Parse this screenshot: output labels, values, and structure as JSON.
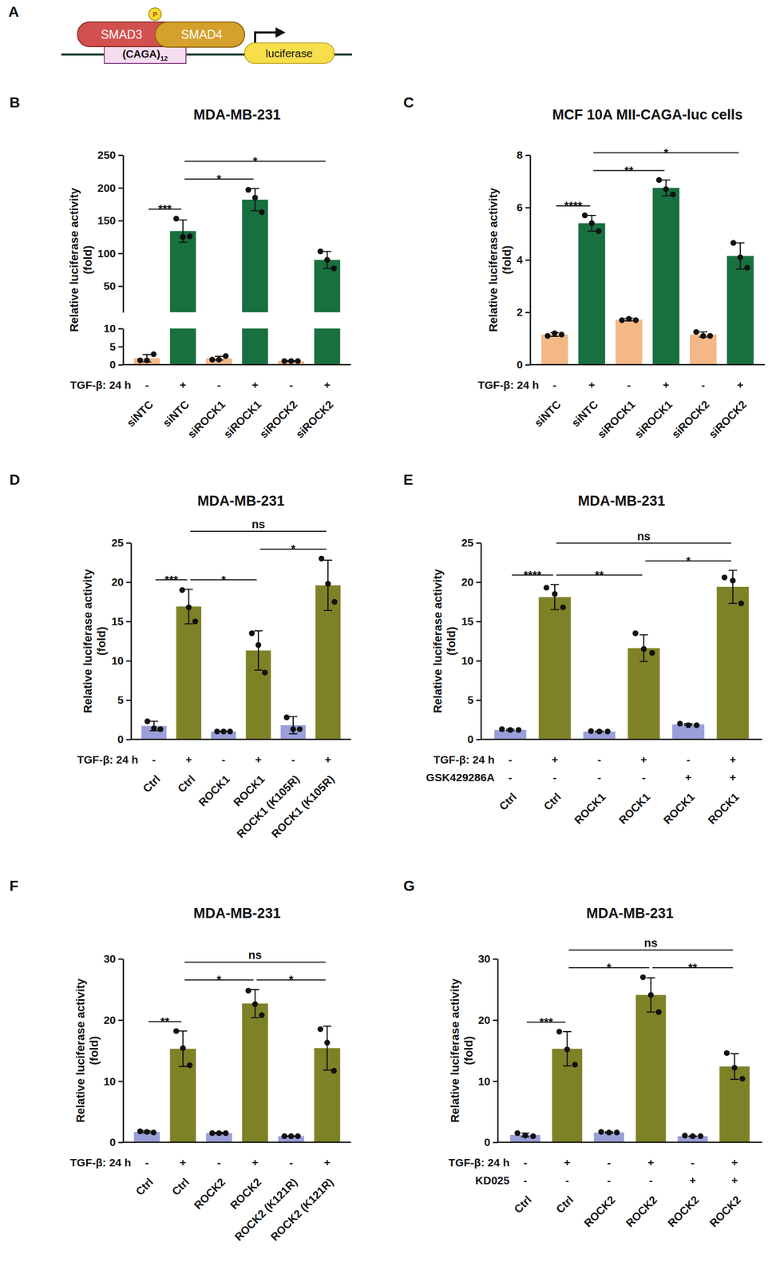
{
  "diagram": {
    "panel": "A",
    "nodes": [
      {
        "label": "SMAD3"
      },
      {
        "label": "SMAD4"
      },
      {
        "label": "P"
      },
      {
        "label": "(CAGA)",
        "subscript": "12"
      },
      {
        "label": "luciferase"
      }
    ]
  },
  "chart_data": [
    {
      "panel": "B",
      "type": "bar",
      "title": "MDA-MB-231",
      "ylabel": "Relative luciferase activity (fold)",
      "categories": [
        "siNTC",
        "siNTC",
        "siROCK1",
        "siROCK1",
        "siROCK2",
        "siROCK2"
      ],
      "x_rows": [
        {
          "label": "TGF-β: 24 h",
          "values": [
            "-",
            "+",
            "-",
            "+",
            "-",
            "+"
          ]
        }
      ],
      "ylim": [
        0,
        250
      ],
      "yticks": [
        0,
        5,
        10,
        50,
        100,
        150,
        200,
        250
      ],
      "ybreak": 10,
      "series": [
        {
          "values": [
            1.8,
            134,
            1.8,
            182,
            1.0,
            90
          ],
          "errors": [
            1.0,
            17,
            0.5,
            17,
            0.1,
            13
          ],
          "points": [
            [
              1.2,
              1.2,
              2.9
            ],
            [
              153,
              125,
              126
            ],
            [
              1.4,
              1.4,
              2.4
            ],
            [
              197,
              185,
              163
            ],
            [
              1.0,
              1.0,
              1.0
            ],
            [
              103,
              90,
              77
            ]
          ],
          "colors": [
            "#f4b887",
            "#18703f",
            "#f4b887",
            "#18703f",
            "#f4b887",
            "#18703f"
          ]
        }
      ],
      "annotations": [
        {
          "text": "***",
          "from": 0,
          "to": 1
        },
        {
          "text": "*",
          "from": 1,
          "to": 3
        },
        {
          "text": "*",
          "from": 1,
          "to": 5
        }
      ]
    },
    {
      "panel": "C",
      "type": "bar",
      "title": "MCF 10A MII-CAGA-luc cells",
      "ylabel": "Relative luciferase activity (fold)",
      "categories": [
        "siNTC",
        "siNTC",
        "siROCK1",
        "siROCK1",
        "siROCK2",
        "siROCK2"
      ],
      "x_rows": [
        {
          "label": "TGF-β: 24 h",
          "values": [
            "-",
            "+",
            "-",
            "+",
            "-",
            "+"
          ]
        }
      ],
      "ylim": [
        0,
        8
      ],
      "yticks": [
        0,
        2,
        4,
        6,
        8
      ],
      "series": [
        {
          "values": [
            1.15,
            5.4,
            1.72,
            6.75,
            1.15,
            4.15
          ],
          "errors": [
            0.07,
            0.3,
            0.05,
            0.3,
            0.1,
            0.5
          ],
          "points": [
            [
              1.1,
              1.2,
              1.15
            ],
            [
              5.7,
              5.4,
              5.1
            ],
            [
              1.7,
              1.75,
              1.7
            ],
            [
              7.05,
              6.7,
              6.5
            ],
            [
              1.25,
              1.1,
              1.1
            ],
            [
              4.65,
              4.1,
              3.7
            ]
          ],
          "colors": [
            "#f4b887",
            "#18703f",
            "#f4b887",
            "#18703f",
            "#f4b887",
            "#18703f"
          ]
        }
      ],
      "annotations": [
        {
          "text": "****",
          "from": 0,
          "to": 1
        },
        {
          "text": "**",
          "from": 1,
          "to": 3
        },
        {
          "text": "*",
          "from": 1,
          "to": 5
        }
      ]
    },
    {
      "panel": "D",
      "type": "bar",
      "title": "MDA-MB-231",
      "ylabel": "Relative luciferase activity (fold)",
      "categories": [
        "Ctrl",
        "Ctrl",
        "ROCK1",
        "ROCK1",
        "ROCK1 (K105R)",
        "ROCK1 (K105R)"
      ],
      "x_rows": [
        {
          "label": "TGF-β: 24 h",
          "values": [
            "-",
            "+",
            "-",
            "+",
            "-",
            "+"
          ]
        }
      ],
      "ylim": [
        0,
        25
      ],
      "yticks": [
        0,
        5,
        10,
        15,
        20,
        25
      ],
      "series": [
        {
          "values": [
            1.7,
            16.9,
            1.0,
            11.3,
            1.8,
            19.6
          ],
          "errors": [
            0.6,
            2.2,
            0.02,
            2.5,
            1.1,
            3.2
          ],
          "points": [
            [
              2.3,
              1.4,
              1.3
            ],
            [
              19.0,
              16.8,
              15.0
            ],
            [
              1.0,
              1.0,
              1.0
            ],
            [
              13.5,
              12.0,
              8.5
            ],
            [
              2.8,
              1.3,
              1.3
            ],
            [
              23.0,
              19.8,
              17.5
            ]
          ],
          "colors": [
            "#9a9ed9",
            "#7e8226",
            "#9a9ed9",
            "#7e8226",
            "#9a9ed9",
            "#7e8226"
          ]
        }
      ],
      "annotations": [
        {
          "text": "***",
          "from": 0,
          "to": 1
        },
        {
          "text": "*",
          "from": 1,
          "to": 3
        },
        {
          "text": "*",
          "from": 3,
          "to": 5
        },
        {
          "text": "ns",
          "from": 1,
          "to": 5
        }
      ]
    },
    {
      "panel": "E",
      "type": "bar",
      "title": "MDA-MB-231",
      "ylabel": "Relative luciferase activity (fold)",
      "categories": [
        "Ctrl",
        "Ctrl",
        "ROCK1",
        "ROCK1",
        "ROCK1",
        "ROCK1"
      ],
      "x_rows": [
        {
          "label": "TGF-β: 24 h",
          "values": [
            "-",
            "+",
            "-",
            "+",
            "-",
            "+"
          ]
        },
        {
          "label": "GSK429286A",
          "values": [
            "-",
            "-",
            "-",
            "-",
            "+",
            "+"
          ]
        }
      ],
      "ylim": [
        0,
        25
      ],
      "yticks": [
        0,
        5,
        10,
        15,
        20,
        25
      ],
      "series": [
        {
          "values": [
            1.2,
            18.1,
            1.0,
            11.6,
            1.9,
            19.4
          ],
          "errors": [
            0.1,
            1.6,
            0.05,
            1.7,
            0.1,
            2.1
          ],
          "points": [
            [
              1.3,
              1.2,
              1.2
            ],
            [
              19.3,
              18.5,
              16.8
            ],
            [
              1.05,
              1.0,
              1.0
            ],
            [
              13.5,
              11.5,
              11.0
            ],
            [
              2.0,
              1.8,
              1.8
            ],
            [
              20.6,
              20.2,
              17.3
            ]
          ],
          "colors": [
            "#9a9ed9",
            "#7e8226",
            "#9a9ed9",
            "#7e8226",
            "#9a9ed9",
            "#7e8226"
          ]
        }
      ],
      "annotations": [
        {
          "text": "****",
          "from": 0,
          "to": 1
        },
        {
          "text": "**",
          "from": 1,
          "to": 3
        },
        {
          "text": "*",
          "from": 3,
          "to": 5
        },
        {
          "text": "ns",
          "from": 1,
          "to": 5
        }
      ]
    },
    {
      "panel": "F",
      "type": "bar",
      "title": "MDA-MB-231",
      "ylabel": "Relative luciferase activity (fold)",
      "categories": [
        "Ctrl",
        "Ctrl",
        "ROCK2",
        "ROCK2",
        "ROCK2 (K121R)",
        "ROCK2 (K121R)"
      ],
      "x_rows": [
        {
          "label": "TGF-β: 24 h",
          "values": [
            "-",
            "+",
            "-",
            "+",
            "-",
            "+"
          ]
        }
      ],
      "ylim": [
        0,
        30
      ],
      "yticks": [
        0,
        10,
        20,
        30
      ],
      "series": [
        {
          "values": [
            1.7,
            15.3,
            1.5,
            22.7,
            1.0,
            15.4
          ],
          "errors": [
            0.15,
            2.9,
            0.1,
            2.3,
            0.05,
            3.6
          ],
          "points": [
            [
              1.8,
              1.7,
              1.6
            ],
            [
              18.2,
              15.4,
              12.6
            ],
            [
              1.5,
              1.5,
              1.5
            ],
            [
              24.8,
              22.6,
              20.8
            ],
            [
              1.0,
              1.0,
              1.0
            ],
            [
              18.5,
              16.3,
              11.7
            ]
          ],
          "colors": [
            "#9a9ed9",
            "#7e8226",
            "#9a9ed9",
            "#7e8226",
            "#9a9ed9",
            "#7e8226"
          ]
        }
      ],
      "annotations": [
        {
          "text": "**",
          "from": 0,
          "to": 1
        },
        {
          "text": "*",
          "from": 1,
          "to": 3
        },
        {
          "text": "*",
          "from": 3,
          "to": 5
        },
        {
          "text": "ns",
          "from": 1,
          "to": 5
        }
      ]
    },
    {
      "panel": "G",
      "type": "bar",
      "title": "MDA-MB-231",
      "ylabel": "Relative luciferase activity (fold)",
      "categories": [
        "Ctrl",
        "Ctrl",
        "ROCK2",
        "ROCK2",
        "ROCK2",
        "ROCK2"
      ],
      "x_rows": [
        {
          "label": "TGF-β: 24 h",
          "values": [
            "-",
            "+",
            "-",
            "+",
            "-",
            "+"
          ]
        },
        {
          "label": "KD025",
          "values": [
            "-",
            "-",
            "-",
            "-",
            "+",
            "+"
          ]
        }
      ],
      "ylim": [
        0,
        30
      ],
      "yticks": [
        0,
        10,
        20,
        30
      ],
      "series": [
        {
          "values": [
            1.2,
            15.3,
            1.6,
            24.1,
            1.0,
            12.4
          ],
          "errors": [
            0.3,
            2.8,
            0.1,
            2.8,
            0.05,
            2.1
          ],
          "points": [
            [
              1.5,
              1.1,
              1.0
            ],
            [
              18.1,
              15.2,
              12.7
            ],
            [
              1.7,
              1.6,
              1.6
            ],
            [
              27.0,
              24.1,
              21.3
            ],
            [
              1.1,
              1.0,
              1.0
            ],
            [
              14.6,
              12.2,
              10.4
            ]
          ],
          "colors": [
            "#9a9ed9",
            "#7e8226",
            "#9a9ed9",
            "#7e8226",
            "#9a9ed9",
            "#7e8226"
          ]
        }
      ],
      "annotations": [
        {
          "text": "***",
          "from": 0,
          "to": 1
        },
        {
          "text": "*",
          "from": 1,
          "to": 3
        },
        {
          "text": "**",
          "from": 3,
          "to": 5
        },
        {
          "text": "ns",
          "from": 1,
          "to": 5
        }
      ]
    }
  ]
}
